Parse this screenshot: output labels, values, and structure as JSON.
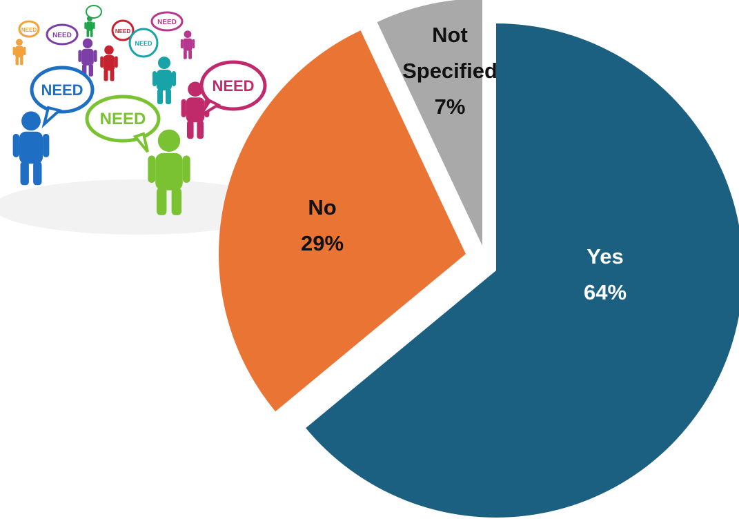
{
  "illustration": {
    "bubble_text": "NEED",
    "figures": [
      {
        "color": "#f2a23a"
      },
      {
        "color": "#7b3fa6"
      },
      {
        "color": "#1fa34b"
      },
      {
        "color": "#c4232f"
      },
      {
        "color": "#17a3a8"
      },
      {
        "color": "#b6388e"
      },
      {
        "color": "#1e6fc4"
      },
      {
        "color": "#7ac231"
      },
      {
        "color": "#c02a6b"
      }
    ]
  },
  "chart_data": {
    "type": "pie",
    "exploded": true,
    "slices": [
      {
        "label": "Yes",
        "value": 64,
        "display": "64%",
        "color": "#1b5f81",
        "text_color": "#ffffff"
      },
      {
        "label": "No",
        "value": 29,
        "display": "29%",
        "color": "#e97434",
        "text_color": "#111111"
      },
      {
        "label": "Not Specified",
        "value": 7,
        "display": "7%",
        "color": "#a9a9a9",
        "text_color": "#111111"
      }
    ]
  }
}
